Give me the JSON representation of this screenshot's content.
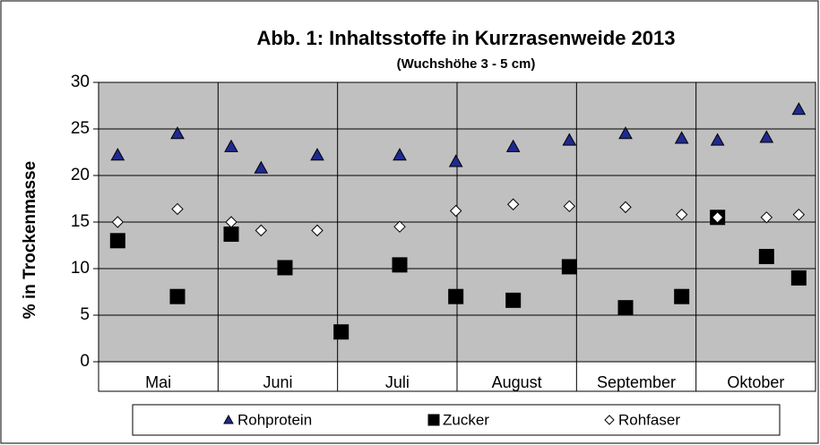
{
  "chart_data": {
    "type": "scatter",
    "title": "Abb. 1: Inhaltsstoffe in Kurzrasenweide 2013",
    "subtitle": "(Wuchshöhe  3 - 5 cm)",
    "y_label": "% in Trockenmasse",
    "categories": [
      "Mai",
      "Juni",
      "Juli",
      "August",
      "September",
      "Oktober"
    ],
    "xlim": [
      0,
      6
    ],
    "ylim": [
      0,
      30
    ],
    "yticks": [
      0,
      5,
      10,
      15,
      20,
      25,
      30
    ],
    "grid": true,
    "series": [
      {
        "name": "Rohprotein",
        "color": "#1f2a8f",
        "marker": "triangle",
        "x": [
          0.16,
          0.66,
          1.11,
          1.36,
          1.83,
          2.52,
          2.99,
          3.47,
          3.94,
          4.41,
          4.88,
          5.18,
          5.59,
          5.86
        ],
        "values": [
          22.2,
          24.5,
          23.1,
          20.8,
          22.2,
          22.2,
          21.5,
          23.1,
          23.8,
          24.5,
          24.0,
          23.8,
          24.1,
          27.1
        ]
      },
      {
        "name": "Zucker",
        "color": "#000000",
        "marker": "square",
        "x": [
          0.16,
          0.66,
          1.11,
          1.56,
          2.03,
          2.52,
          2.99,
          3.47,
          3.94,
          4.41,
          4.88,
          5.18,
          5.59,
          5.86
        ],
        "values": [
          13.0,
          7.0,
          13.7,
          10.1,
          3.2,
          10.4,
          7.0,
          6.6,
          10.2,
          5.8,
          7.0,
          15.5,
          11.3,
          9.0
        ]
      },
      {
        "name": "Rohfaser",
        "color": "#ffffff",
        "marker": "diamond",
        "x": [
          0.16,
          0.66,
          1.11,
          1.36,
          1.83,
          2.52,
          2.99,
          3.47,
          3.94,
          4.41,
          4.88,
          5.18,
          5.59,
          5.86
        ],
        "values": [
          15.0,
          16.4,
          15.0,
          14.1,
          14.1,
          14.5,
          16.2,
          16.9,
          16.7,
          16.6,
          15.8,
          15.5,
          15.5,
          15.8
        ]
      }
    ]
  }
}
